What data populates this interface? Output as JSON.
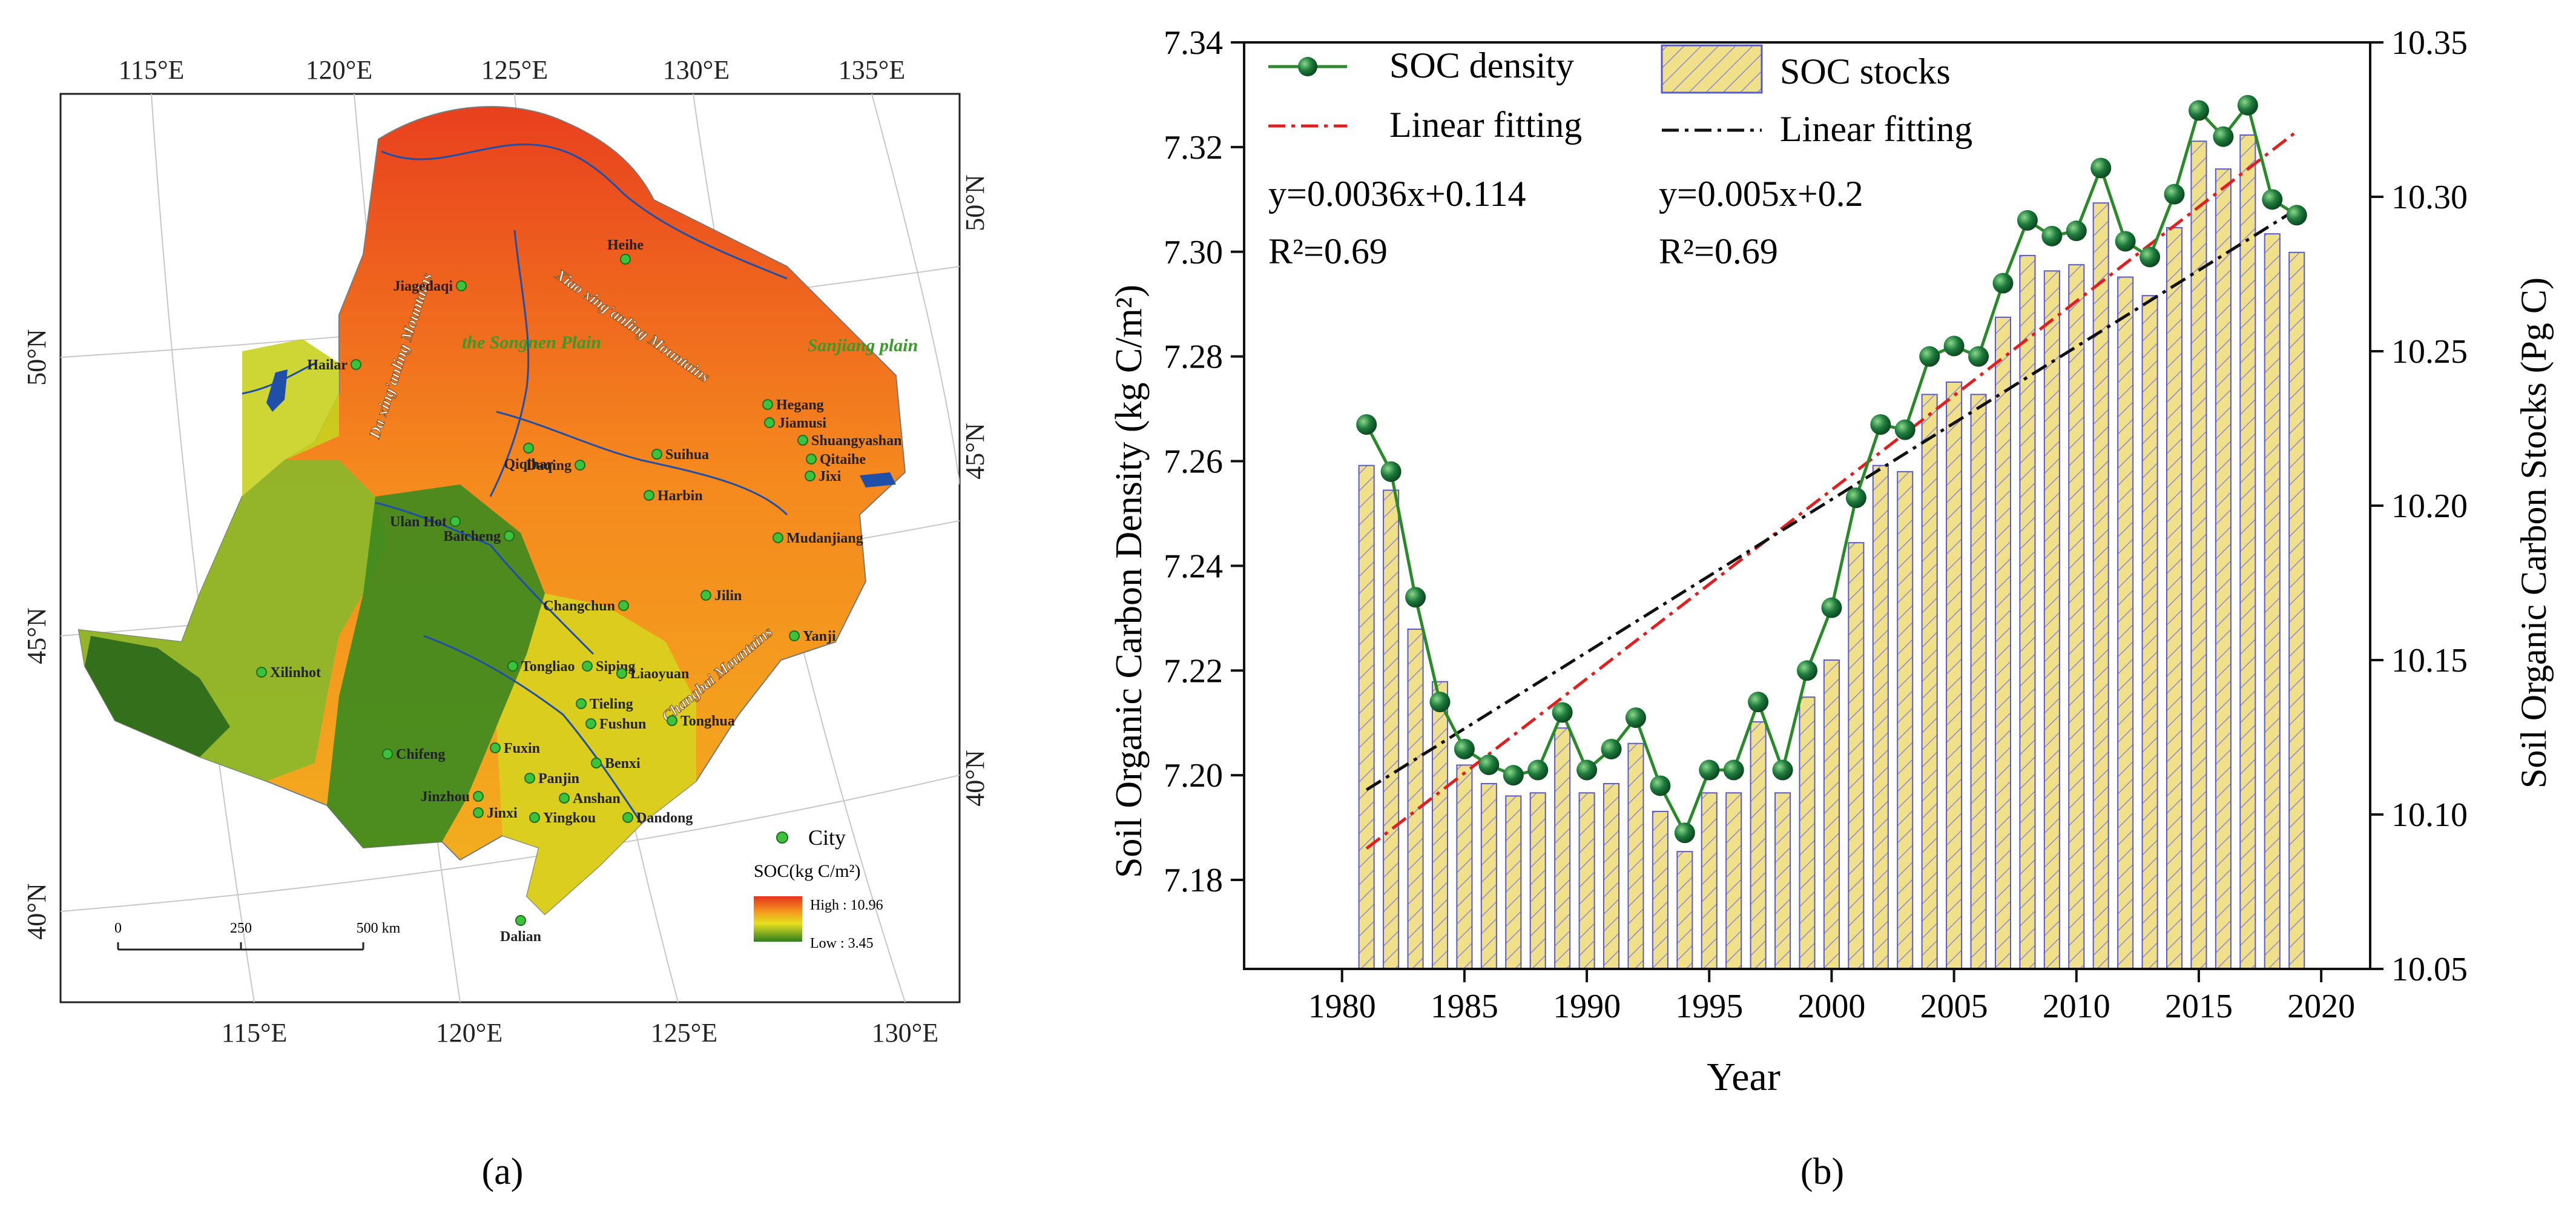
{
  "panel_a": {
    "label": "(a)",
    "top_lon_ticks": [
      "115°E",
      "120°E",
      "125°E",
      "130°E",
      "135°E"
    ],
    "bottom_lon_ticks": [
      "115°E",
      "120°E",
      "125°E",
      "130°E"
    ],
    "right_lat_ticks": [
      "50°N",
      "45°N",
      "40°N"
    ],
    "left_lat_ticks": [
      "50°N",
      "45°N",
      "40°N"
    ],
    "cities": [
      "Heihe",
      "Jiagedaqi",
      "Hailar",
      "Hegang",
      "Jiamusi",
      "Shuangyashan",
      "Qitaihe",
      "Jixi",
      "Suihua",
      "Qiqihar",
      "Daqing",
      "Harbin",
      "Ulan Hot",
      "Baicheng",
      "Mudanjiang",
      "Jilin",
      "Changchun",
      "Yanji",
      "Xilinhot",
      "Tongliao",
      "Siping",
      "Liaoyuan",
      "Tieling",
      "Fushun",
      "Tonghua",
      "Chifeng",
      "Fuxin",
      "Benxi",
      "Panjin",
      "Anshan",
      "Jinzhou",
      "Jinxi",
      "Yingkou",
      "Dandong",
      "Dalian"
    ],
    "regions": [
      "the Songnen Plain",
      "Sanjiang plain"
    ],
    "mountains": [
      "Da xing'anling Mountains",
      "Xiao xing'anling Mountains",
      "Changbai Mountains"
    ],
    "legend": {
      "city_label": "City",
      "soc_title": "SOC(kg C/m²)",
      "high": "High : 10.96",
      "low": "Low : 3.45"
    },
    "scale_bar": {
      "ticks": [
        "0",
        "250",
        "500 km"
      ]
    },
    "colors": {
      "high": "#e8321e",
      "mid": "#f5c81e",
      "low": "#2e7d1e",
      "water": "#1f4fa8",
      "city": "#3cc23c"
    }
  },
  "panel_b": {
    "label": "(b)",
    "legend": {
      "density": "SOC density",
      "stocks": "SOC stocks",
      "fit1": "Linear fitting",
      "fit2": "Linear fitting"
    },
    "eq1": "y=0.0036x+0.114",
    "r1": "R²=0.69",
    "eq2": "y=0.005x+0.2",
    "r2": "R²=0.69"
  },
  "chart_data": {
    "type": "bar",
    "xlabel": "Year",
    "ylabel": "Soil Organic Carbon Density (kg C/m²)",
    "y2label": "Soil Organic Carbon Stocks (Pg C)",
    "x": [
      1981,
      1982,
      1983,
      1984,
      1985,
      1986,
      1987,
      1988,
      1989,
      1990,
      1991,
      1992,
      1993,
      1994,
      1995,
      1996,
      1997,
      1998,
      1999,
      2000,
      2001,
      2002,
      2003,
      2004,
      2005,
      2006,
      2007,
      2008,
      2009,
      2010,
      2011,
      2012,
      2013,
      2014,
      2015,
      2016,
      2017,
      2018,
      2019
    ],
    "xlim": [
      1976,
      2022
    ],
    "xticks": [
      "1980",
      "1985",
      "1990",
      "1995",
      "2000",
      "2005",
      "2010",
      "2015",
      "2020"
    ],
    "ylim": [
      7.163,
      7.34
    ],
    "yticks": [
      "7.18",
      "7.20",
      "7.22",
      "7.24",
      "7.26",
      "7.28",
      "7.30",
      "7.32",
      "7.34"
    ],
    "y2lim": [
      10.05,
      10.35
    ],
    "y2ticks": [
      "10.05",
      "10.10",
      "10.15",
      "10.20",
      "10.25",
      "10.30",
      "10.35"
    ],
    "series": [
      {
        "name": "SOC density",
        "kind": "line",
        "axis": "left",
        "color": "#2a8a2a",
        "values": [
          7.267,
          7.258,
          7.234,
          7.214,
          7.205,
          7.202,
          7.2,
          7.201,
          7.212,
          7.201,
          7.205,
          7.211,
          7.198,
          7.189,
          7.201,
          7.201,
          7.214,
          7.201,
          7.22,
          7.232,
          7.253,
          7.267,
          7.266,
          7.28,
          7.282,
          7.28,
          7.294,
          7.306,
          7.303,
          7.304,
          7.316,
          7.302,
          7.299,
          7.311,
          7.327,
          7.322,
          7.328,
          7.31,
          7.307
        ]
      },
      {
        "name": "SOC stocks",
        "kind": "bar",
        "axis": "right",
        "color": "#f0e08a",
        "values": [
          10.213,
          10.205,
          10.16,
          10.143,
          10.116,
          10.11,
          10.106,
          10.107,
          10.128,
          10.107,
          10.11,
          10.123,
          10.101,
          10.088,
          10.107,
          10.107,
          10.13,
          10.107,
          10.138,
          10.15,
          10.188,
          10.213,
          10.211,
          10.236,
          10.24,
          10.236,
          10.261,
          10.281,
          10.276,
          10.278,
          10.298,
          10.274,
          10.268,
          10.29,
          10.318,
          10.309,
          10.32,
          10.288,
          10.282
        ]
      }
    ],
    "fits": [
      {
        "name": "Linear fitting",
        "axis": "left",
        "color": "#e02020",
        "x": [
          1981,
          2019
        ],
        "y": [
          7.186,
          7.323
        ]
      },
      {
        "name": "Linear fitting",
        "axis": "right",
        "color": "#111111",
        "x": [
          1981,
          2019
        ],
        "y": [
          10.108,
          10.296
        ]
      }
    ]
  }
}
